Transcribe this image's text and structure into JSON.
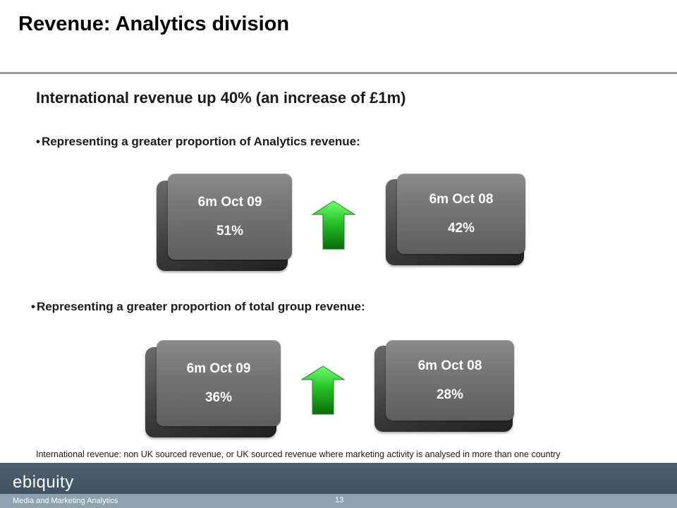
{
  "slide": {
    "title": "Revenue: Analytics division",
    "heading": "International revenue up 40% (an increase of £1m)",
    "bullet_marker": "•",
    "section1": {
      "bullet": "Representing a greater proportion of Analytics revenue:",
      "current": {
        "period": "6m Oct 09",
        "value": "51%"
      },
      "previous": {
        "period": "6m Oct 08",
        "value": "42%"
      },
      "arrow": {
        "icon": "up-arrow-icon",
        "color": "#2fbf2f"
      }
    },
    "section2": {
      "bullet": "Representing a greater proportion of total group revenue:",
      "current": {
        "period": "6m Oct 09",
        "value": "36%"
      },
      "previous": {
        "period": "6m Oct 08",
        "value": "28%"
      },
      "arrow": {
        "icon": "up-arrow-icon",
        "color": "#2fbf2f"
      }
    },
    "footnote": "International revenue: non UK sourced revenue, or UK sourced revenue where marketing activity is analysed in more than one country"
  },
  "footer": {
    "logo": "ebiquity",
    "tagline": "Media and Marketing Analytics",
    "page_number": "13"
  }
}
